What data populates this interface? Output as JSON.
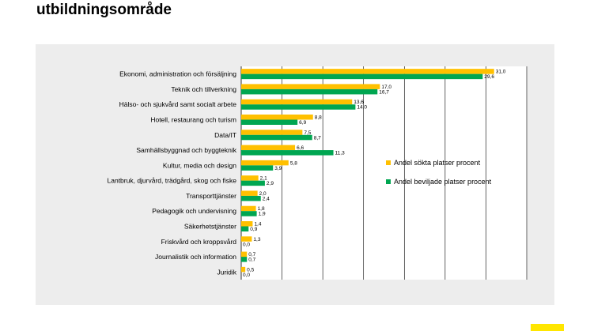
{
  "page": {
    "title": "utbildningsområde"
  },
  "chart_data": {
    "type": "bar",
    "orientation": "horizontal",
    "categories": [
      "Ekonomi, administration och försäljning",
      "Teknik och tillverkning",
      "Hälso- och sjukvård samt socialt arbete",
      "Hotell, restaurang och turism",
      "Data/IT",
      "Samhällsbyggnad och byggteknik",
      "Kultur, media och design",
      "Lantbruk, djurvård, trädgård, skog och fiske",
      "Transporttjänster",
      "Pedagogik och undervisning",
      "Säkerhetstjänster",
      "Friskvård och kroppsvård",
      "Journalistik och information",
      "Juridik"
    ],
    "series": [
      {
        "name": "Andel sökta platser procent",
        "color": "#ffc000",
        "values": [
          31.0,
          17.0,
          13.6,
          8.8,
          7.5,
          6.6,
          5.8,
          2.1,
          2.0,
          1.8,
          1.4,
          1.3,
          0.7,
          0.5
        ],
        "labels": [
          "31,0",
          "17,0",
          "13,6",
          "8,8",
          "7,5",
          "6,6",
          "5,8",
          "2,1",
          "2,0",
          "1,8",
          "1,4",
          "1,3",
          "0,7",
          "0,5"
        ]
      },
      {
        "name": "Andel beviljade platser procent",
        "color": "#00a651",
        "values": [
          29.6,
          16.7,
          14.0,
          6.9,
          8.7,
          11.3,
          3.9,
          2.9,
          2.4,
          1.9,
          0.9,
          0.0,
          0.7,
          0.0
        ],
        "labels": [
          "29,6",
          "16,7",
          "14,0",
          "6,9",
          "8,7",
          "11,3",
          "3,9",
          "2,9",
          "2,4",
          "1,9",
          "0,9",
          "0,0",
          "0,7",
          "0,0"
        ]
      }
    ],
    "xlim": [
      0,
      35
    ],
    "grid": true,
    "legend_position": "right"
  }
}
